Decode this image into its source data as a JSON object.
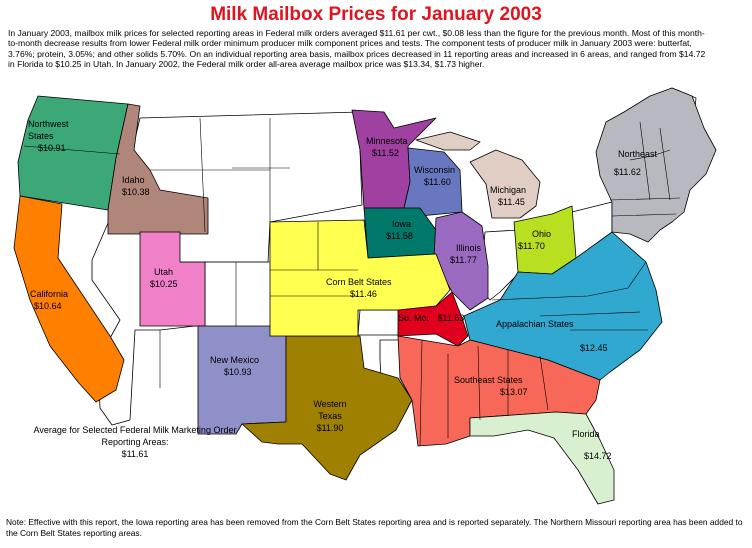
{
  "title": "Milk Mailbox Prices for January 2003",
  "intro": "In January 2003, mailbox milk prices for selected reporting areas in Federal milk orders averaged $11.61 per cwt., $0.08 less than the figure for the previous month.  Most of this month-to-month decrease results from lower Federal milk order minimum producer milk component prices and tests. The component tests of producer milk in January 2003 were: butterfat, 3.76%; protein, 3.05%; and other solids 5.70%. On an individual reporting area basis, mailbox prices decreased in 11 reporting areas and increased in 6 areas, and ranged from $14.72 in Florida to $10.25 in Utah.  In January 2002, the Federal milk order all-area average mailbox price was $13.34, $1.73 higher.",
  "regions": [
    {
      "key": "northwest",
      "name": "Northwest States",
      "price": "$10.91",
      "color": "#3ca878"
    },
    {
      "key": "idaho",
      "name": "Idaho",
      "price": "$10.38",
      "color": "#b0857a"
    },
    {
      "key": "california",
      "name": "California",
      "price": "$10.64",
      "color": "#ff7f00"
    },
    {
      "key": "utah",
      "name": "Utah",
      "price": "$10.25",
      "color": "#f080c8"
    },
    {
      "key": "newmexico",
      "name": "New Mexico",
      "price": "$10.93",
      "color": "#9090c8"
    },
    {
      "key": "westerntexas",
      "name": "Western Texas",
      "price": "$11.90",
      "color": "#a08000"
    },
    {
      "key": "minnesota",
      "name": "Minnesota",
      "price": "$11.52",
      "color": "#a040a0"
    },
    {
      "key": "wisconsin",
      "name": "Wisconsin",
      "price": "$11.60",
      "color": "#6878c0"
    },
    {
      "key": "iowa",
      "name": "Iowa",
      "price": "$11.58",
      "color": "#00786a"
    },
    {
      "key": "michigan",
      "name": "Michigan",
      "price": "$11.45",
      "color": "#e0cdc4"
    },
    {
      "key": "illinois",
      "name": "Illinois",
      "price": "$11.77",
      "color": "#9a6ac0"
    },
    {
      "key": "cornbelt",
      "name": "Corn Belt States",
      "price": "$11.46",
      "color": "#ffff50"
    },
    {
      "key": "somo",
      "name": "So. Mo.",
      "price": "$11.63",
      "color": "#e0001e"
    },
    {
      "key": "ohio",
      "name": "Ohio",
      "price": "$11.70",
      "color": "#b8e020"
    },
    {
      "key": "appalachian",
      "name": "Appalachian States",
      "price": "$12.45",
      "color": "#30a8d0"
    },
    {
      "key": "southeast",
      "name": "Southeast States",
      "price": "$13.07",
      "color": "#f86858"
    },
    {
      "key": "florida",
      "name": "Florida",
      "price": "$14.72",
      "color": "#d8f0d0"
    },
    {
      "key": "northeast",
      "name": "Northeast",
      "price": "$11.62",
      "color": "#b8b8c0"
    }
  ],
  "average": {
    "label": "Average for Selected Federal Milk Marketing Order Reporting Areas:",
    "value": "$11.61"
  },
  "note": "Note: Effective with this report, the Iowa reporting area has been removed from the Corn Belt States reporting area and is reported separately. The Northern Missouri reporting area has been added to the Corn Belt States reporting areas."
}
